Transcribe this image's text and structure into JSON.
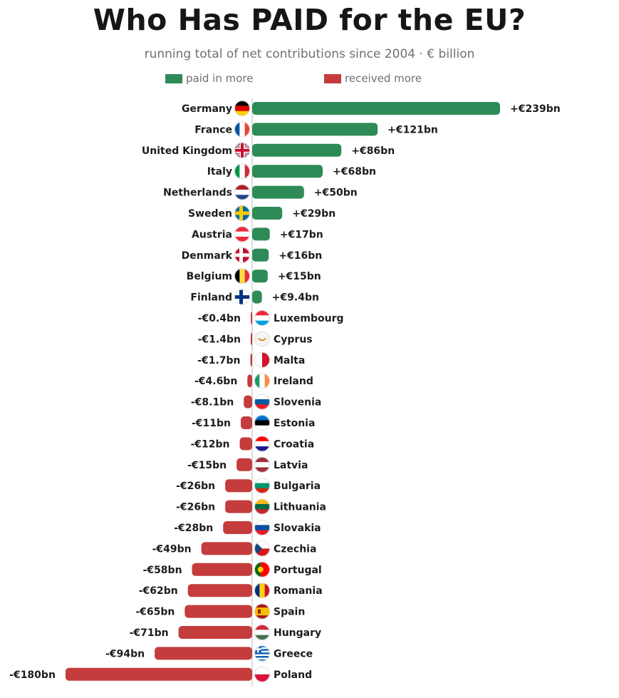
{
  "title": "Who Has PAID for the EU?",
  "subtitle": "running total of net contributions since 2004  ·  € billion",
  "legend": {
    "positive": {
      "label": "paid in more",
      "color": "#2e8b57"
    },
    "negative": {
      "label": "received more",
      "color": "#c43c3c"
    }
  },
  "chart_data": {
    "type": "bar",
    "orientation": "horizontal",
    "unit": "€ billion",
    "categories": [
      "Germany",
      "France",
      "United Kingdom",
      "Italy",
      "Netherlands",
      "Sweden",
      "Austria",
      "Denmark",
      "Belgium",
      "Finland",
      "Luxembourg",
      "Cyprus",
      "Malta",
      "Ireland",
      "Slovenia",
      "Estonia",
      "Croatia",
      "Latvia",
      "Bulgaria",
      "Lithuania",
      "Slovakia",
      "Czechia",
      "Portugal",
      "Romania",
      "Spain",
      "Hungary",
      "Greece",
      "Poland"
    ],
    "values": [
      239,
      121,
      86,
      68,
      50,
      29,
      17,
      16,
      15,
      9.4,
      -0.4,
      -1.4,
      -1.7,
      -4.6,
      -8.1,
      -11,
      -12,
      -15,
      -26,
      -26,
      -28,
      -49,
      -58,
      -62,
      -65,
      -71,
      -94,
      -180
    ],
    "value_labels": [
      "+€239bn",
      "+€121bn",
      "+€86bn",
      "+€68bn",
      "+€50bn",
      "+€29bn",
      "+€17bn",
      "+€16bn",
      "+€15bn",
      "+€9.4bn",
      "-€0.4bn",
      "-€1.4bn",
      "-€1.7bn",
      "-€4.6bn",
      "-€8.1bn",
      "-€11bn",
      "-€12bn",
      "-€15bn",
      "-€26bn",
      "-€26bn",
      "-€28bn",
      "-€49bn",
      "-€58bn",
      "-€62bn",
      "-€65bn",
      "-€71bn",
      "-€94bn",
      "-€180bn"
    ],
    "flag_icons": [
      "germany-flag-icon",
      "france-flag-icon",
      "united-kingdom-flag-icon",
      "italy-flag-icon",
      "netherlands-flag-icon",
      "sweden-flag-icon",
      "austria-flag-icon",
      "denmark-flag-icon",
      "belgium-flag-icon",
      "finland-flag-icon",
      "luxembourg-flag-icon",
      "cyprus-flag-icon",
      "malta-flag-icon",
      "ireland-flag-icon",
      "slovenia-flag-icon",
      "estonia-flag-icon",
      "croatia-flag-icon",
      "latvia-flag-icon",
      "bulgaria-flag-icon",
      "lithuania-flag-icon",
      "slovakia-flag-icon",
      "czechia-flag-icon",
      "portugal-flag-icon",
      "romania-flag-icon",
      "spain-flag-icon",
      "hungary-flag-icon",
      "greece-flag-icon",
      "poland-flag-icon"
    ],
    "xlim": [
      -180,
      239
    ],
    "grid": false,
    "legend_position": "top"
  }
}
